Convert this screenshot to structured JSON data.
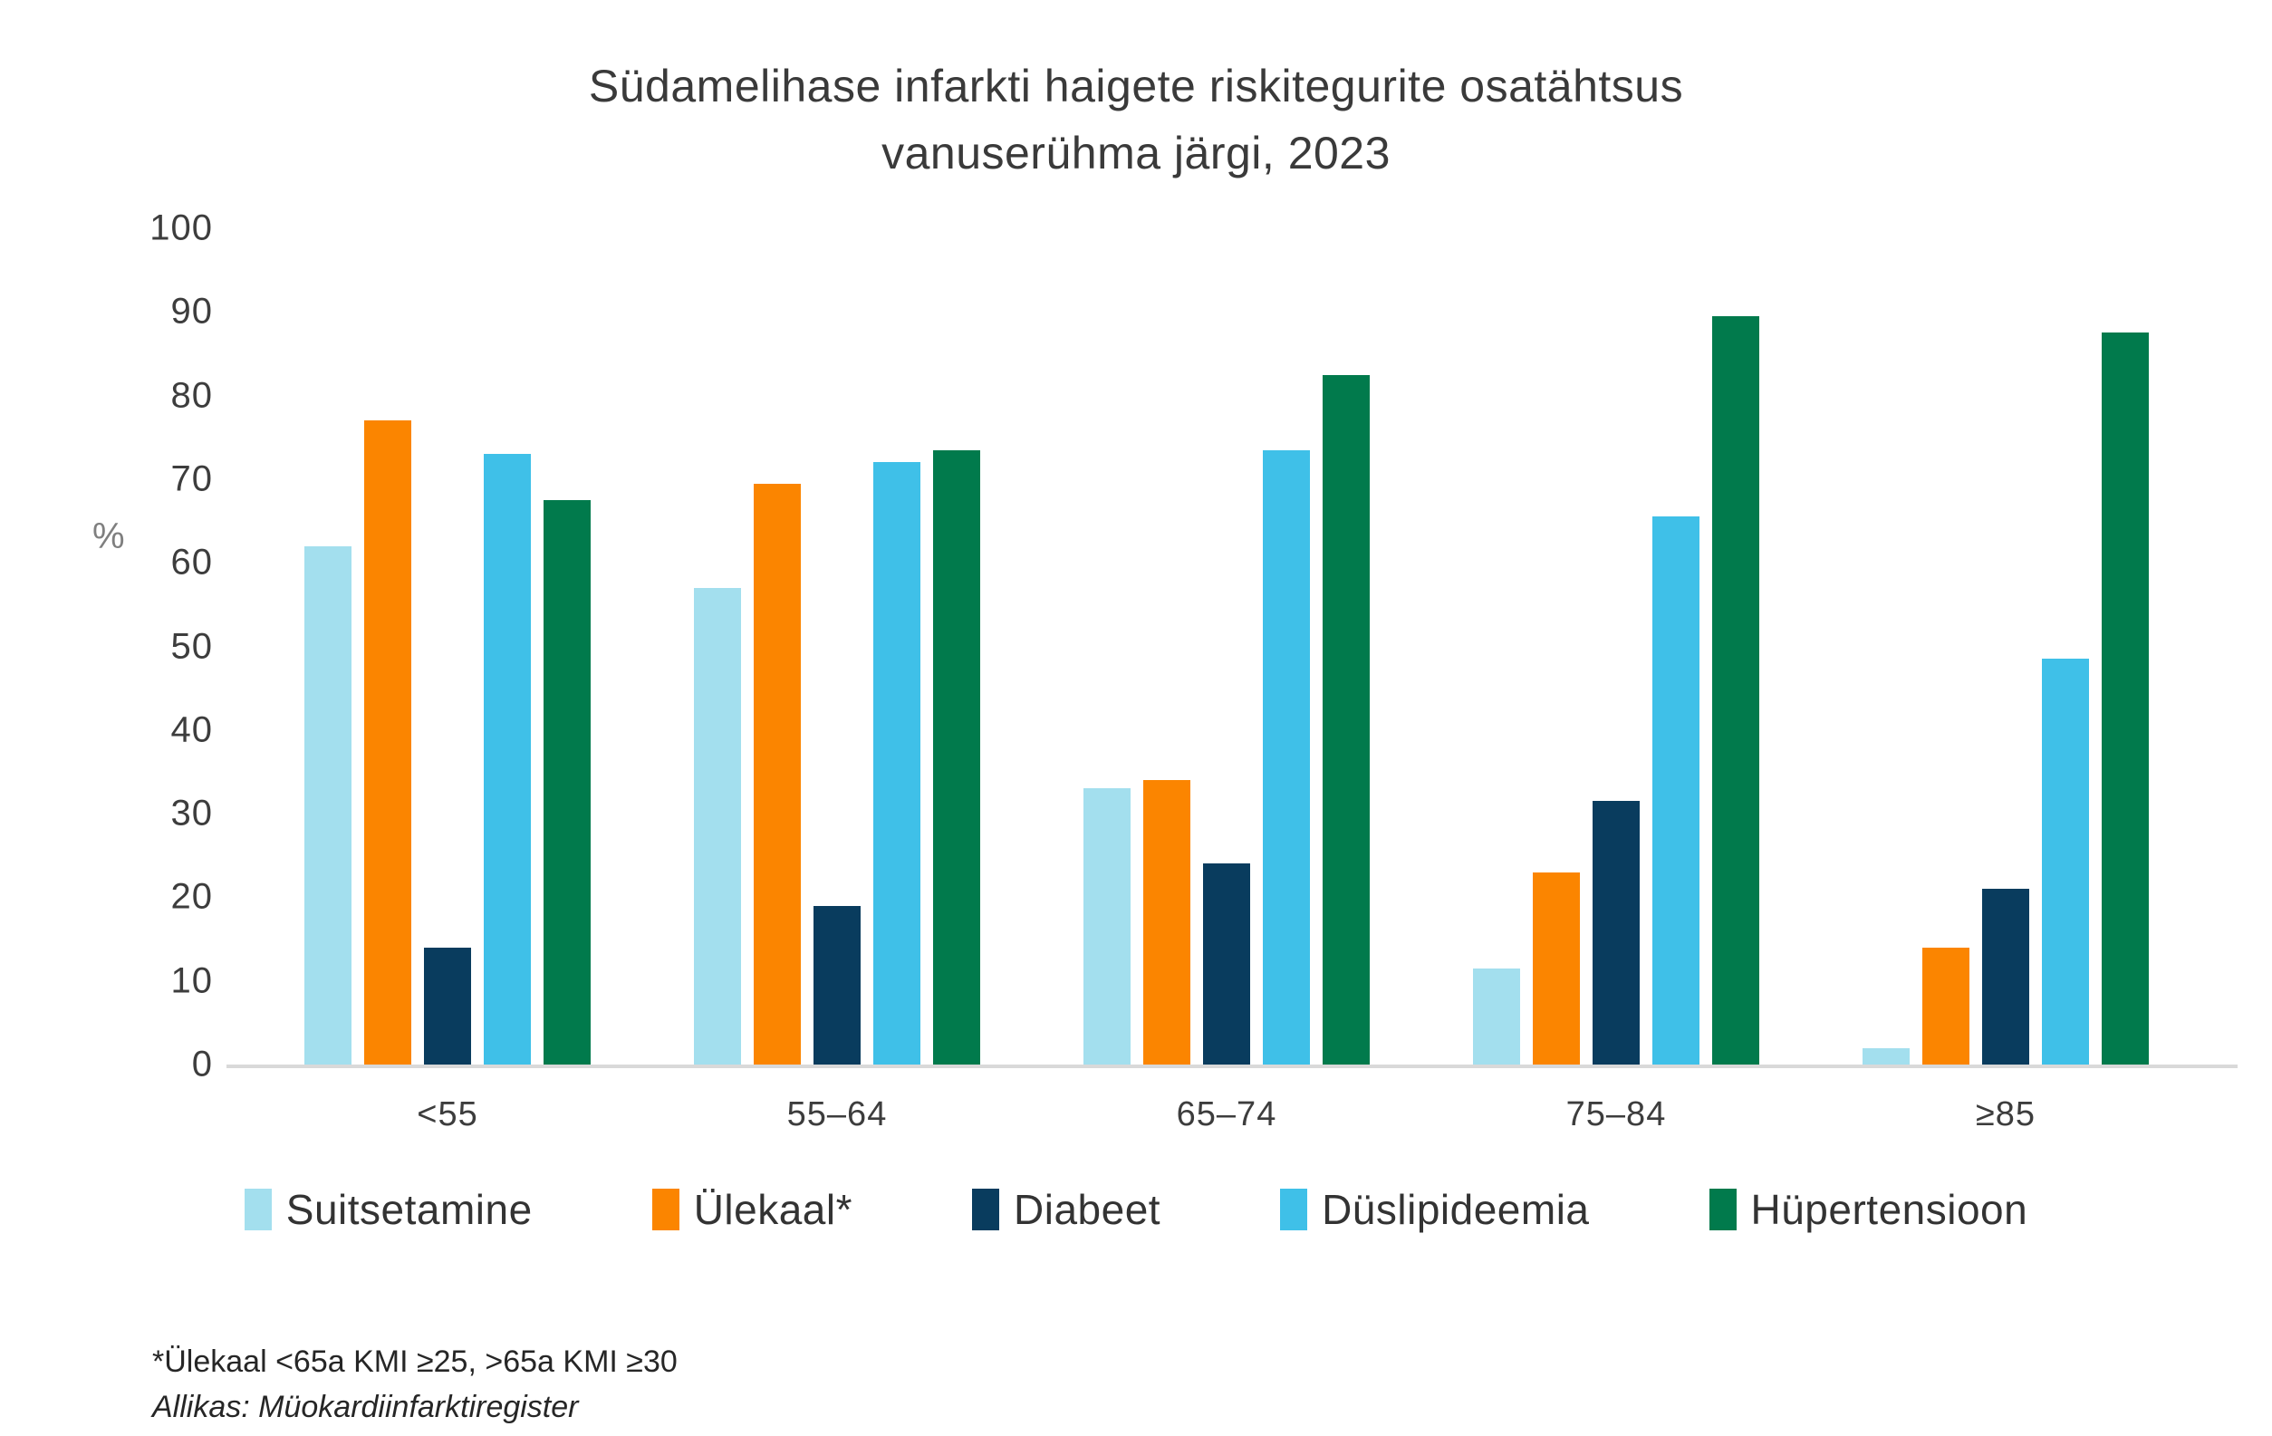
{
  "title": {
    "line1": "Südamelihase infarkti haigete riskitegurite osatähtsus",
    "line2": "vanuserühma järgi, 2023"
  },
  "y_axis": {
    "label": "%",
    "ticks": [
      0,
      10,
      20,
      30,
      40,
      50,
      60,
      70,
      80,
      90,
      100
    ]
  },
  "chart_data": {
    "type": "bar",
    "title": "Südamelihase infarkti haigete riskitegurite osatähtsus vanuserühma järgi, 2023",
    "xlabel": "",
    "ylabel": "%",
    "ylim": [
      0,
      100
    ],
    "ytick_step": 10,
    "grid": false,
    "legend_position": "bottom",
    "categories": [
      "<55",
      "55–64",
      "65–74",
      "75–84",
      "≥85"
    ],
    "series": [
      {
        "name": "Suitsetamine",
        "color": "#A3DFEE",
        "values": [
          62,
          57,
          33,
          11.5,
          2
        ]
      },
      {
        "name": "Ülekaal*",
        "color": "#FB8500",
        "values": [
          77,
          69.5,
          34,
          23,
          14
        ]
      },
      {
        "name": "Diabeet",
        "color": "#093C5E",
        "values": [
          14,
          19,
          24,
          31.5,
          21
        ]
      },
      {
        "name": "Düslipideemia",
        "color": "#3FC0E8",
        "values": [
          73,
          72,
          73.5,
          65.5,
          48.5
        ]
      },
      {
        "name": "Hüpertensioon",
        "color": "#017A4C",
        "values": [
          67.5,
          73.5,
          82.5,
          89.5,
          87.5
        ]
      }
    ]
  },
  "footnotes": {
    "line1": "*Ülekaal <65a KMI ≥25, >65a KMI ≥30",
    "line2": "Allikas: Müokardiinfarktiregister"
  }
}
